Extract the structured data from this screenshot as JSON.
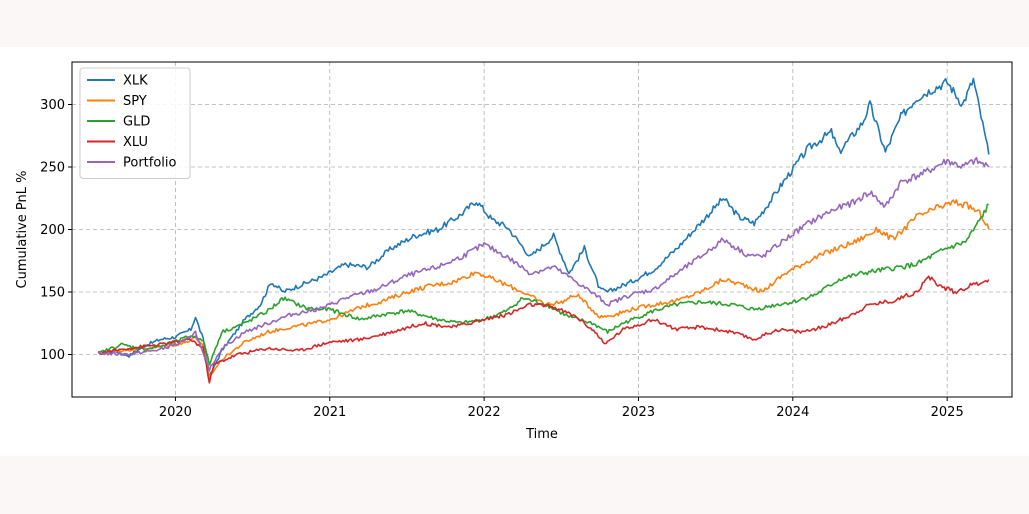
{
  "chart_data": {
    "type": "line",
    "title": "",
    "xlabel": "Time",
    "ylabel": "Cumulative PnL %",
    "xlim": [
      2019.33,
      2025.42
    ],
    "ylim": [
      66,
      334
    ],
    "x_ticks": [
      2020,
      2021,
      2022,
      2023,
      2024,
      2025
    ],
    "x_tick_labels": [
      "2020",
      "2021",
      "2022",
      "2023",
      "2024",
      "2025"
    ],
    "y_ticks": [
      100,
      150,
      200,
      250,
      300
    ],
    "y_tick_labels": [
      "100",
      "150",
      "200",
      "250",
      "300"
    ],
    "grid": true,
    "legend_position": "top-left",
    "series": [
      {
        "name": "XLK",
        "color": "#1f77b4",
        "x": [
          2019.5,
          2019.6,
          2019.7,
          2019.8,
          2019.9,
          2020.0,
          2020.1,
          2020.13,
          2020.18,
          2020.22,
          2020.3,
          2020.45,
          2020.55,
          2020.62,
          2020.7,
          2020.8,
          2020.95,
          2021.1,
          2021.25,
          2021.4,
          2021.55,
          2021.7,
          2021.85,
          2021.95,
          2022.05,
          2022.15,
          2022.3,
          2022.45,
          2022.55,
          2022.65,
          2022.75,
          2022.8,
          2022.95,
          2023.1,
          2023.25,
          2023.4,
          2023.55,
          2023.65,
          2023.75,
          2023.85,
          2023.95,
          2024.1,
          2024.25,
          2024.3,
          2024.45,
          2024.5,
          2024.6,
          2024.7,
          2024.8,
          2024.9,
          2025.0,
          2025.1,
          2025.17,
          2025.22,
          2025.27
        ],
        "y": [
          101,
          103,
          99,
          107,
          112,
          114,
          120,
          130,
          112,
          82,
          103,
          128,
          140,
          158,
          150,
          155,
          162,
          172,
          170,
          185,
          195,
          200,
          212,
          223,
          208,
          202,
          178,
          195,
          165,
          185,
          152,
          150,
          158,
          168,
          185,
          205,
          225,
          210,
          205,
          222,
          240,
          265,
          278,
          262,
          285,
          300,
          262,
          290,
          305,
          312,
          318,
          300,
          320,
          290,
          260
        ]
      },
      {
        "name": "SPY",
        "color": "#ff7f0e",
        "x": [
          2019.5,
          2019.7,
          2019.9,
          2020.05,
          2020.13,
          2020.18,
          2020.22,
          2020.3,
          2020.45,
          2020.6,
          2020.75,
          2020.9,
          2021.05,
          2021.2,
          2021.35,
          2021.5,
          2021.65,
          2021.8,
          2021.95,
          2022.1,
          2022.25,
          2022.4,
          2022.5,
          2022.6,
          2022.75,
          2022.85,
          2022.95,
          2023.1,
          2023.25,
          2023.4,
          2023.55,
          2023.7,
          2023.8,
          2023.95,
          2024.1,
          2024.25,
          2024.4,
          2024.55,
          2024.65,
          2024.8,
          2024.95,
          2025.05,
          2025.15,
          2025.22,
          2025.27
        ],
        "y": [
          101,
          104,
          106,
          109,
          114,
          106,
          82,
          96,
          110,
          118,
          122,
          125,
          130,
          138,
          143,
          150,
          155,
          158,
          166,
          158,
          150,
          140,
          142,
          148,
          130,
          132,
          136,
          140,
          143,
          150,
          160,
          155,
          150,
          165,
          175,
          183,
          190,
          200,
          192,
          210,
          218,
          222,
          218,
          212,
          200
        ]
      },
      {
        "name": "GLD",
        "color": "#2ca02c",
        "x": [
          2019.5,
          2019.65,
          2019.8,
          2019.95,
          2020.1,
          2020.18,
          2020.22,
          2020.3,
          2020.45,
          2020.6,
          2020.7,
          2020.85,
          2021.0,
          2021.2,
          2021.35,
          2021.5,
          2021.7,
          2021.85,
          2022.0,
          2022.15,
          2022.25,
          2022.4,
          2022.55,
          2022.7,
          2022.8,
          2022.9,
          2023.1,
          2023.25,
          2023.4,
          2023.6,
          2023.75,
          2023.9,
          2024.0,
          2024.15,
          2024.3,
          2024.45,
          2024.6,
          2024.8,
          2024.92,
          2025.0,
          2025.12,
          2025.2,
          2025.27
        ],
        "y": [
          101,
          108,
          104,
          108,
          115,
          112,
          92,
          118,
          125,
          135,
          145,
          137,
          136,
          128,
          132,
          135,
          128,
          125,
          128,
          135,
          145,
          140,
          130,
          125,
          118,
          125,
          135,
          140,
          142,
          140,
          136,
          140,
          142,
          148,
          160,
          165,
          168,
          172,
          180,
          185,
          190,
          205,
          220
        ]
      },
      {
        "name": "XLU",
        "color": "#d62728",
        "x": [
          2019.5,
          2019.7,
          2019.9,
          2020.1,
          2020.18,
          2020.22,
          2020.25,
          2020.4,
          2020.6,
          2020.8,
          2021.0,
          2021.2,
          2021.4,
          2021.6,
          2021.8,
          2022.0,
          2022.15,
          2022.3,
          2022.45,
          2022.6,
          2022.72,
          2022.78,
          2022.9,
          2023.1,
          2023.25,
          2023.4,
          2023.6,
          2023.75,
          2023.9,
          2024.05,
          2024.2,
          2024.35,
          2024.5,
          2024.65,
          2024.8,
          2024.88,
          2024.95,
          2025.05,
          2025.15,
          2025.27
        ],
        "y": [
          101,
          105,
          108,
          112,
          105,
          78,
          92,
          100,
          105,
          103,
          110,
          112,
          118,
          125,
          122,
          128,
          132,
          140,
          138,
          130,
          118,
          108,
          120,
          128,
          120,
          122,
          118,
          112,
          120,
          118,
          122,
          130,
          140,
          143,
          150,
          162,
          155,
          150,
          155,
          160
        ]
      },
      {
        "name": "Portfolio",
        "color": "#9467bd",
        "x": [
          2019.5,
          2019.7,
          2019.9,
          2020.05,
          2020.13,
          2020.18,
          2020.22,
          2020.3,
          2020.45,
          2020.6,
          2020.75,
          2020.95,
          2021.1,
          2021.3,
          2021.5,
          2021.7,
          2021.85,
          2022.0,
          2022.15,
          2022.3,
          2022.45,
          2022.6,
          2022.75,
          2022.8,
          2022.95,
          2023.1,
          2023.25,
          2023.4,
          2023.55,
          2023.7,
          2023.8,
          2023.95,
          2024.1,
          2024.25,
          2024.4,
          2024.5,
          2024.6,
          2024.7,
          2024.85,
          2025.0,
          2025.1,
          2025.18,
          2025.27
        ],
        "y": [
          101,
          100,
          104,
          110,
          118,
          100,
          88,
          105,
          118,
          125,
          132,
          137,
          145,
          152,
          163,
          170,
          178,
          188,
          178,
          165,
          170,
          158,
          145,
          140,
          148,
          152,
          165,
          178,
          192,
          180,
          178,
          192,
          205,
          215,
          222,
          230,
          218,
          238,
          245,
          255,
          250,
          255,
          250
        ]
      }
    ]
  }
}
